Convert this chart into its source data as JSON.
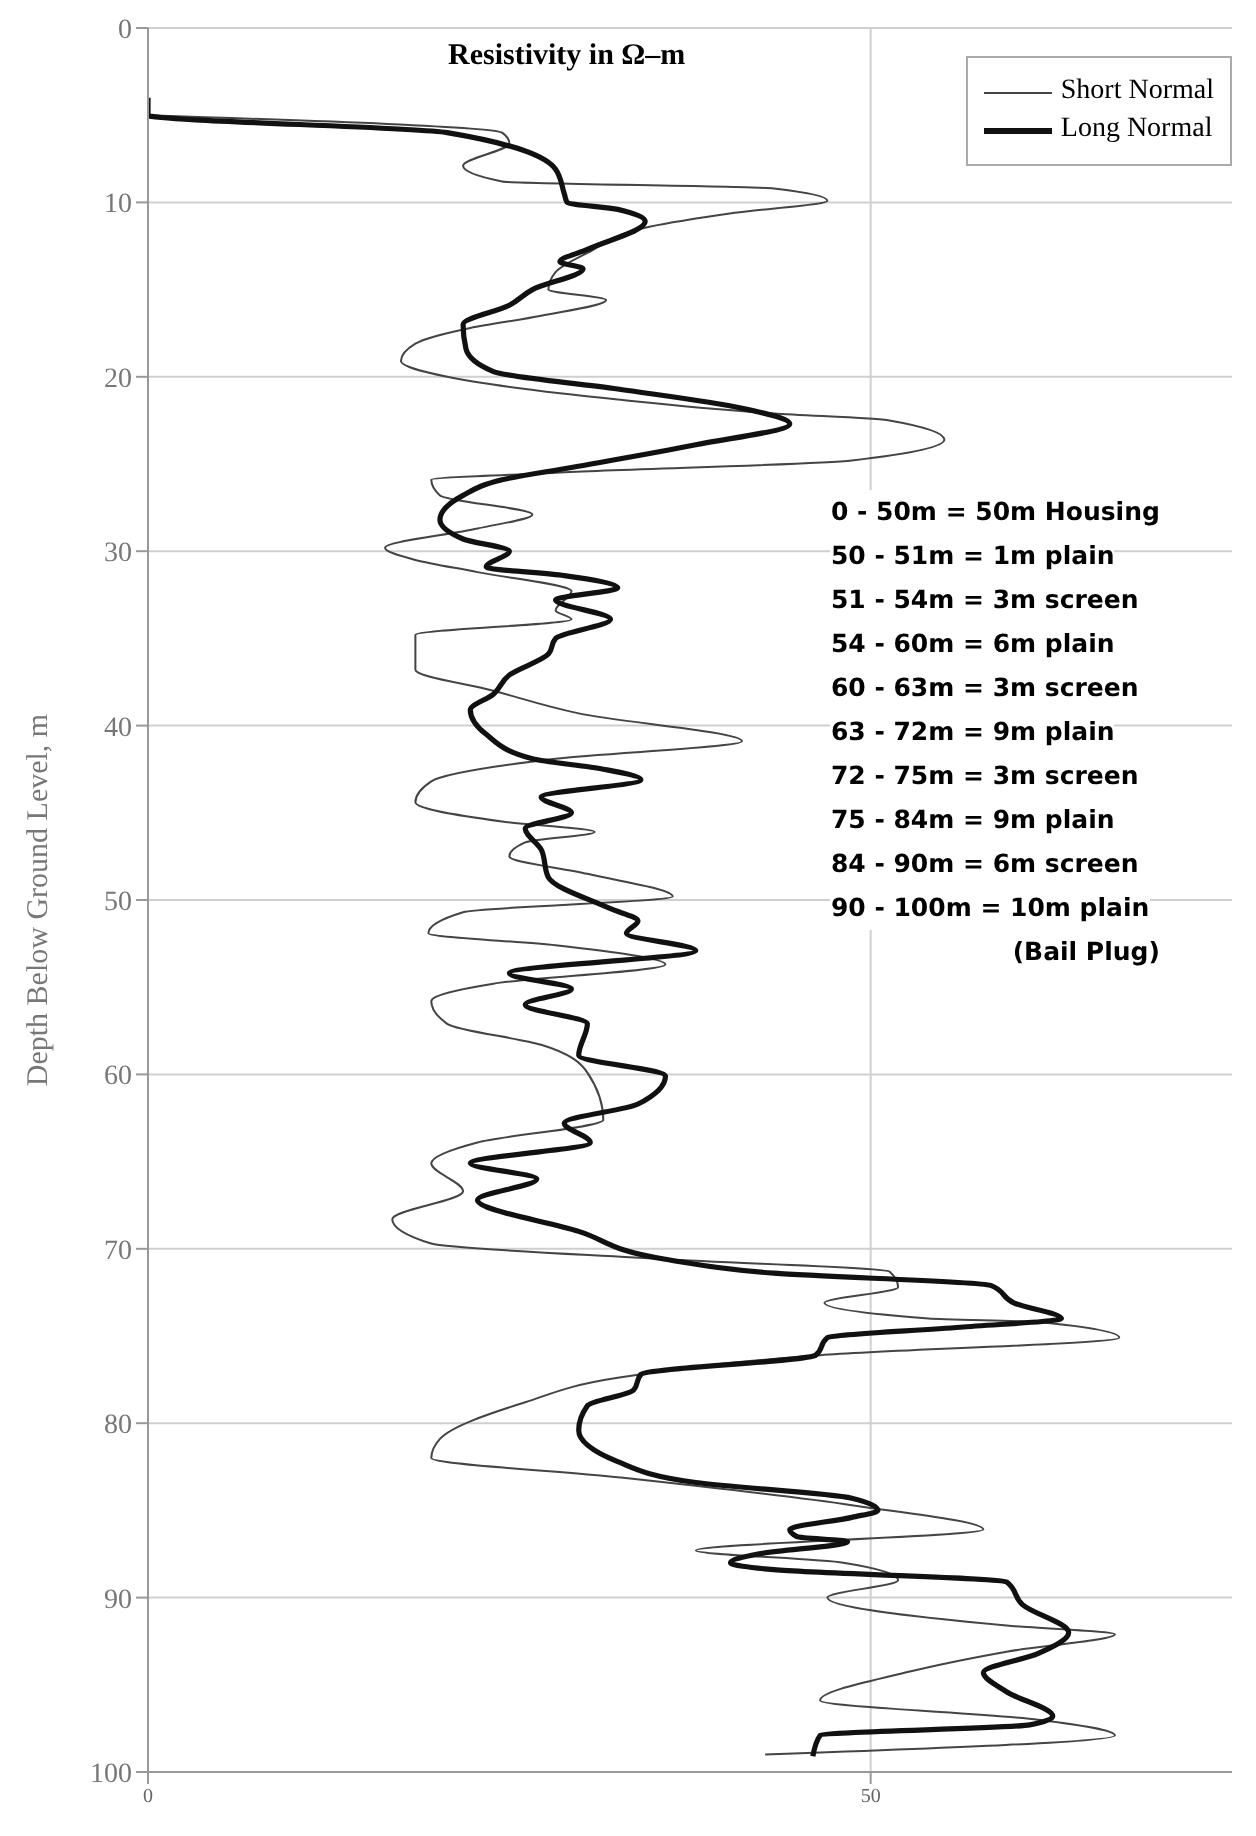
{
  "chart_data": {
    "type": "line",
    "title": "Resistivity in Ω–m",
    "ylabel": "Depth Below Ground Level, m",
    "xlim": [
      0,
      75
    ],
    "xticks": [
      0,
      50
    ],
    "ylim": [
      100,
      0
    ],
    "yticks": [
      0,
      10,
      20,
      30,
      40,
      50,
      60,
      70,
      80,
      90,
      100
    ],
    "grid": true,
    "orientation": "horizontal",
    "legend": "top right",
    "marker": "none",
    "line_style": "solid",
    "annotations": [
      "0 - 50m = 50m Housing",
      "50 - 51m = 1m plain",
      "51 - 54m = 3m screen",
      "54 - 60m = 6m plain",
      "60 - 63m = 3m screen",
      "63 - 72m = 9m plain",
      "72 - 75m = 3m screen",
      "75 - 84m = 9m plain",
      "84 - 90m = 6m screen",
      "90 - 100m = 10m plain",
      "(Bail Plug)"
    ],
    "series": [
      {
        "name": "Short Normal",
        "color": "#444444",
        "x": [
          5,
          6,
          6.6,
          7.9,
          8.8,
          9.2,
          9.9,
          10.6,
          11.4,
          12.9,
          14,
          15,
          15.6,
          16.5,
          17.2,
          18.1,
          19.1,
          20,
          21.3,
          22.1,
          22.5,
          23.6,
          24.8,
          25.5,
          25.9,
          26.8,
          27.9,
          28.7,
          29.8,
          30.5,
          31.2,
          32.3,
          33.4,
          33.9,
          34.8,
          36.8,
          38,
          39.3,
          40.9,
          41.9,
          43.2,
          44.4,
          45.5,
          46.1,
          46.7,
          47.5,
          48.5,
          49.8,
          50.7,
          51.9,
          52.6,
          53.7,
          54.8,
          55.8,
          57.1,
          58.3,
          59.9,
          62.6,
          63.9,
          65.1,
          66.7,
          68.3,
          69.7,
          70.6,
          71.3,
          72.2,
          73.1,
          74,
          74.2,
          75.1,
          76.1,
          77.4,
          78.8,
          80.9,
          82,
          83.1,
          84.7,
          86.1,
          87.3,
          88,
          89,
          90,
          91.6,
          92.1,
          93.1,
          94.3,
          95.9,
          97,
          97.9,
          99
        ],
        "values": [
          0,
          24.5,
          25,
          21.8,
          24.5,
          43.3,
          47,
          40.6,
          34.7,
          30.4,
          28.2,
          27.7,
          31.7,
          27.2,
          22.3,
          18.5,
          17.5,
          20.7,
          32.5,
          43.3,
          51.3,
          55.1,
          48.7,
          28.2,
          19.6,
          20.2,
          26.6,
          22.8,
          16.4,
          18.5,
          22.8,
          29.3,
          28.2,
          29.3,
          18.5,
          18.5,
          23.9,
          29.8,
          41.1,
          28.2,
          19.6,
          18.5,
          24.5,
          30.9,
          26.1,
          25,
          30.4,
          36.3,
          21.8,
          19.4,
          28.2,
          35.8,
          23.9,
          19.6,
          20.7,
          27.2,
          30.4,
          31.5,
          22.8,
          19.6,
          21.8,
          16.9,
          19.6,
          35.8,
          51.3,
          51.9,
          46.8,
          54,
          61.6,
          67.2,
          46.5,
          32.5,
          26.1,
          20.2,
          19.6,
          32.5,
          48.7,
          57.8,
          37.9,
          48.1,
          51.9,
          47,
          59.4,
          66.9,
          59.4,
          52.4,
          46.5,
          61.6,
          66.9,
          42.7
        ]
      },
      {
        "name": "Long Normal",
        "color": "#111111",
        "x": [
          4,
          5,
          6,
          8.1,
          9.5,
          10,
          10.4,
          11.1,
          12.7,
          13.4,
          13.8,
          15,
          15.9,
          17,
          18.4,
          19.7,
          20.7,
          21.8,
          22.7,
          23.9,
          25.2,
          25.9,
          26.8,
          28.2,
          29.3,
          30,
          30.9,
          31.4,
          32.1,
          32.8,
          33.9,
          35,
          35.9,
          37.1,
          38.2,
          39.1,
          40.5,
          41.9,
          42.5,
          43.1,
          44.1,
          45,
          45.9,
          47.1,
          48.7,
          50.5,
          51.2,
          51.9,
          52.9,
          54.2,
          55.1,
          56,
          57.1,
          58.9,
          60.1,
          61.7,
          62.8,
          63.9,
          65.1,
          66,
          67.2,
          69,
          70.6,
          71.4,
          72.1,
          73.1,
          74,
          74.5,
          75.1,
          76.1,
          77.2,
          78.1,
          79,
          80.4,
          82.2,
          83.4,
          84.3,
          85,
          85.4,
          86.1,
          86.5,
          86.8,
          87.5,
          88,
          88.4,
          89.1,
          90.4,
          92,
          93.2,
          94.3,
          95.4,
          96.8,
          97.3,
          97.9,
          99.1
        ],
        "values": [
          0,
          0,
          20.7,
          28.2,
          28.8,
          29,
          32.5,
          34.4,
          30.4,
          28.5,
          30.1,
          26.6,
          25,
          21.8,
          22,
          23.9,
          32.5,
          41.1,
          44.4,
          37.9,
          29.3,
          24.5,
          21.8,
          20.2,
          21.8,
          25,
          23.4,
          28.8,
          32.5,
          28.2,
          32,
          28.2,
          27.7,
          25,
          23.9,
          22.3,
          23.4,
          26.6,
          31.5,
          34.1,
          27.2,
          29.3,
          26.1,
          27.2,
          27.7,
          32,
          33.9,
          33.1,
          37.9,
          25,
          29.3,
          26.1,
          30.4,
          29.8,
          35.8,
          33.9,
          28.8,
          30.6,
          22.3,
          26.9,
          22.8,
          29.8,
          35.8,
          43.3,
          58.3,
          59.9,
          63.2,
          56.2,
          47,
          46.2,
          34.1,
          33.6,
          30.4,
          29.8,
          32.5,
          37.9,
          48.7,
          50.5,
          48.7,
          44.4,
          44.9,
          48.4,
          42.2,
          40.3,
          43.3,
          59.4,
          60.5,
          63.7,
          61.6,
          57.8,
          59.4,
          62.6,
          61,
          46.5,
          46
        ]
      }
    ]
  }
}
